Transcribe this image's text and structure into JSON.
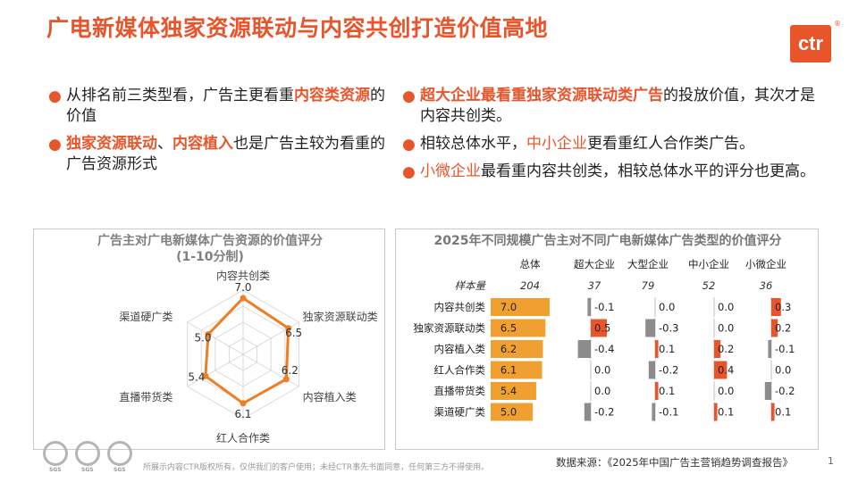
{
  "title": "广电新媒体独家资源联动与内容共创打造价值高地",
  "logo": "ctr",
  "logo_mark": "®",
  "bullets_left": [
    {
      "parts": [
        {
          "t": "从排名前三类型看，广告主更看重"
        },
        {
          "t": "内容类资源",
          "hl": true
        },
        {
          "t": "的价值"
        }
      ]
    },
    {
      "parts": [
        {
          "t": "独家资源联动",
          "hl": true
        },
        {
          "t": "、"
        },
        {
          "t": "内容植入",
          "hl": true
        },
        {
          "t": "也是广告主较为看重的广告资源形式"
        }
      ]
    }
  ],
  "bullets_right": [
    {
      "parts": [
        {
          "t": "超大企业最看重独家资源联动类广告",
          "hl": true
        },
        {
          "t": "的投放价值，其次才是内容共创类。"
        }
      ]
    },
    {
      "parts": [
        {
          "t": "相较总体水平，"
        },
        {
          "t": "中小企业",
          "hl": true,
          "light": true
        },
        {
          "t": "更看重红人合作类广告。"
        }
      ]
    },
    {
      "parts": [
        {
          "t": "小微企业",
          "hl": true,
          "light": true
        },
        {
          "t": "最看重内容共创类，相较总体水平的评分也更高。"
        }
      ]
    }
  ],
  "chart_data": [
    {
      "type": "radar",
      "title": "广告主对广电新媒体广告资源的价值评分",
      "subtitle": "(1-10分制)",
      "categories": [
        "内容共创类",
        "独家资源联动类",
        "内容植入类",
        "红人合作类",
        "直播带货类",
        "渠道硬广类"
      ],
      "values": [
        7.0,
        6.5,
        6.2,
        6.1,
        5.4,
        5.0
      ],
      "value_labels": [
        "7.0",
        "6.5",
        "6.2",
        "6.1",
        "5.4",
        "5.0"
      ],
      "rmax": 8,
      "color": "#ef7d22"
    },
    {
      "type": "table",
      "title": "2025年不同规模广告主对不同广电新媒体广告类型的价值评分",
      "columns": [
        "总体",
        "超大企业",
        "大型企业",
        "中小企业",
        "小微企业"
      ],
      "sample_label": "样本量",
      "sample_sizes": [
        "204",
        "37",
        "79",
        "52",
        "36"
      ],
      "rows": [
        "内容共创类",
        "独家资源联动类",
        "内容植入类",
        "红人合作类",
        "直播带货类",
        "渠道硬广类"
      ],
      "overall": [
        7.0,
        6.5,
        6.2,
        6.1,
        5.4,
        5.0
      ],
      "overall_labels": [
        "7.0",
        "6.5",
        "6.2",
        "6.1",
        "5.4",
        "5.0"
      ],
      "diffs": [
        [
          -0.1,
          0.0,
          0.0,
          0.3
        ],
        [
          0.5,
          -0.3,
          0.0,
          0.2
        ],
        [
          -0.4,
          0.1,
          0.2,
          -0.1
        ],
        [
          0.0,
          -0.2,
          0.4,
          0.0
        ],
        [
          0.0,
          0.1,
          0.0,
          -0.2
        ],
        [
          -0.2,
          -0.1,
          0.1,
          0.1
        ]
      ],
      "diff_labels": [
        [
          "-0.1",
          "0.0",
          "0.0",
          "0.3"
        ],
        [
          "0.5",
          "-0.3",
          "0.0",
          "0.2"
        ],
        [
          "-0.4",
          "0.1",
          "0.2",
          "-0.1"
        ],
        [
          "0.0",
          "-0.2",
          "0.4",
          "0.0"
        ],
        [
          "0.0",
          "0.1",
          "0.0",
          "-0.2"
        ],
        [
          "-0.2",
          "-0.1",
          "0.1",
          "0.1"
        ]
      ],
      "colors": {
        "overall": "#f0a030",
        "positive": "#e8552b",
        "negative": "#8c8c8c"
      }
    }
  ],
  "footer": "所展示内容CTR版权所有，仅供我们的客户使用；未经CTR事先书面同意，任何第三方不得使用。",
  "source": "数据来源：《2025年中国广告主营销趋势调查报告》",
  "page_number": "1",
  "badges": [
    "SGS",
    "SGS",
    "SGS"
  ]
}
